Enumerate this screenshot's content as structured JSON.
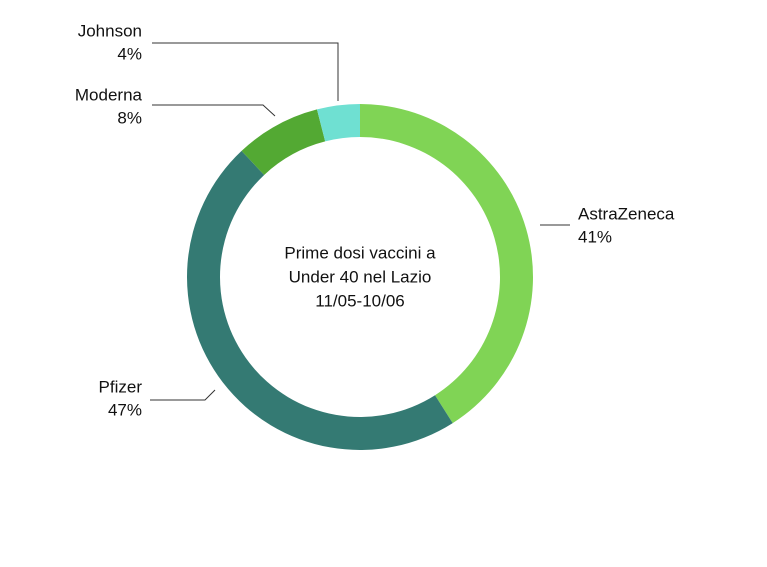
{
  "chart_data": {
    "type": "donut",
    "title": [
      "Prime dosi vaccini a",
      "Under 40 nel Lazio",
      "11/05-10/06"
    ],
    "categories": [
      "AstraZeneca",
      "Pfizer",
      "Moderna",
      "Johnson"
    ],
    "values": [
      41,
      47,
      8,
      4
    ],
    "value_labels": [
      "41%",
      "47%",
      "8%",
      "4%"
    ],
    "colors": [
      "#80d455",
      "#347a73",
      "#53a933",
      "#6fe0d2"
    ]
  }
}
